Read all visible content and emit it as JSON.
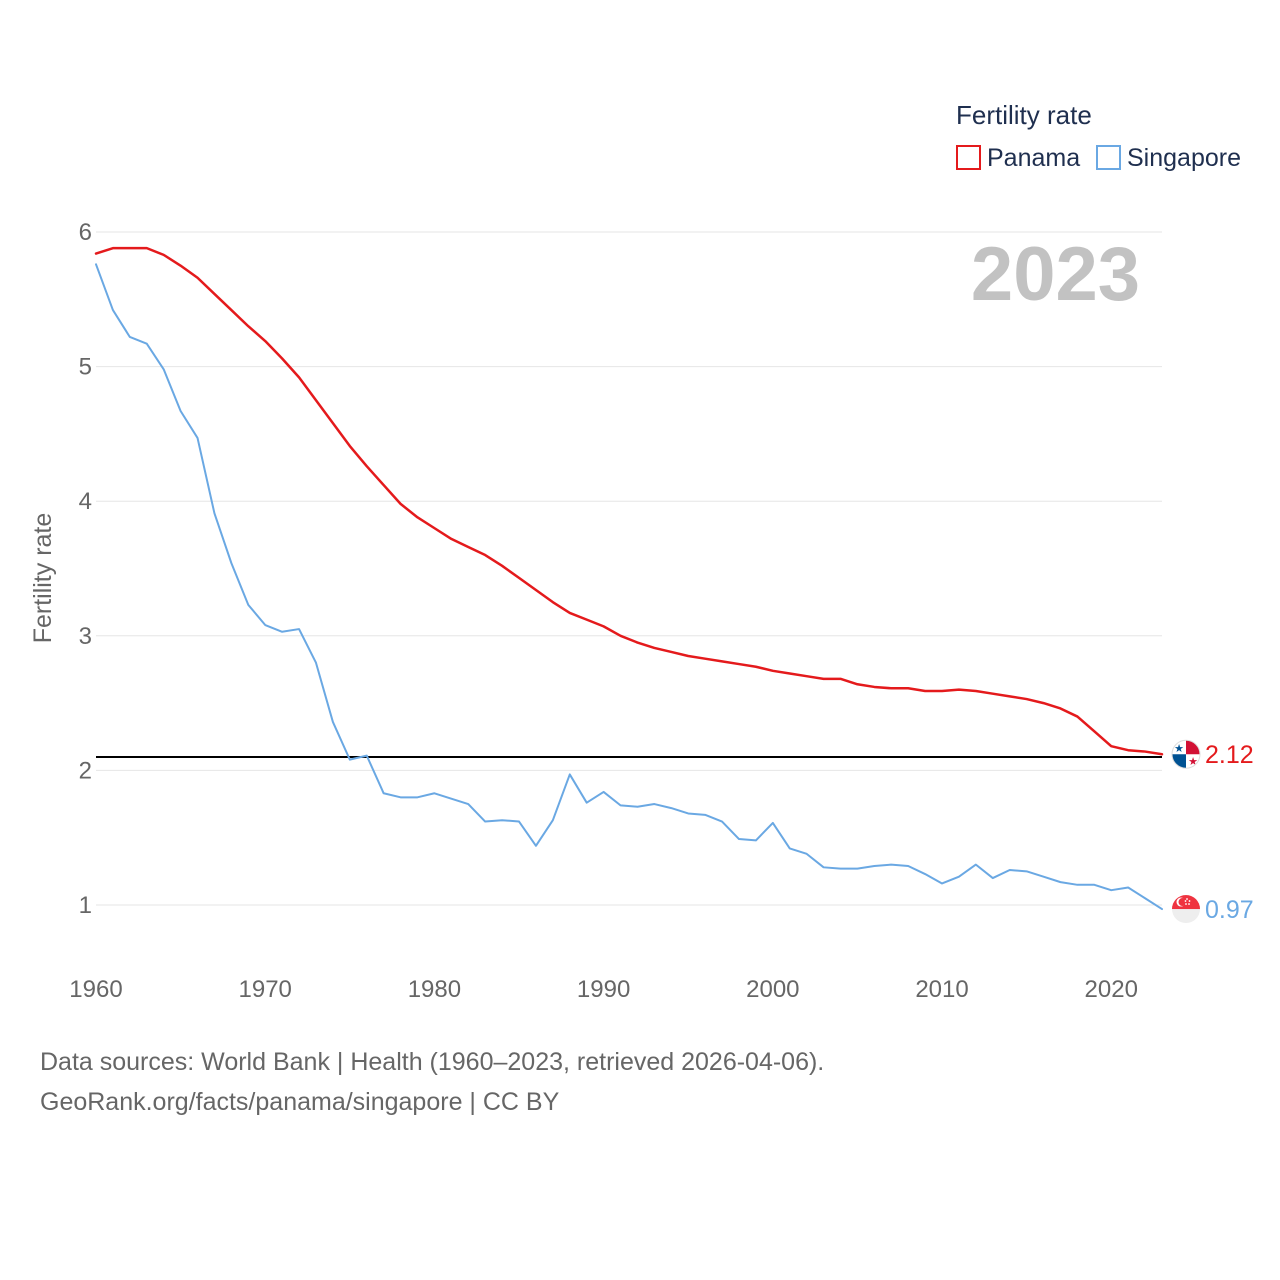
{
  "chart_data": {
    "type": "line",
    "year_label": "2023",
    "ylabel": "Fertility rate",
    "xlabel": "",
    "xlim": [
      1960,
      2023
    ],
    "ylim": [
      0.5,
      6.2
    ],
    "x_ticks": [
      1960,
      1970,
      1980,
      1990,
      2000,
      2010,
      2020
    ],
    "y_ticks": [
      1,
      2,
      3,
      4,
      5,
      6
    ],
    "grid": true,
    "reference_line": {
      "value": 2.1,
      "color": "#000000"
    },
    "legend": {
      "title": "Fertility rate",
      "placement": "top-right"
    },
    "series": [
      {
        "name": "Panama",
        "color": "#e41a1c",
        "end_label": "2.12",
        "start_year": 1960,
        "values": [
          5.84,
          5.88,
          5.88,
          5.88,
          5.83,
          5.75,
          5.66,
          5.54,
          5.42,
          5.3,
          5.19,
          5.06,
          4.92,
          4.75,
          4.58,
          4.41,
          4.26,
          4.12,
          3.98,
          3.88,
          3.8,
          3.72,
          3.66,
          3.6,
          3.52,
          3.43,
          3.34,
          3.25,
          3.17,
          3.12,
          3.07,
          3.0,
          2.95,
          2.91,
          2.88,
          2.85,
          2.83,
          2.81,
          2.79,
          2.77,
          2.74,
          2.72,
          2.7,
          2.68,
          2.68,
          2.64,
          2.62,
          2.61,
          2.61,
          2.59,
          2.59,
          2.6,
          2.59,
          2.57,
          2.55,
          2.53,
          2.5,
          2.46,
          2.4,
          2.29,
          2.18,
          2.15,
          2.14,
          2.12
        ]
      },
      {
        "name": "Singapore",
        "color": "#6aa8e3",
        "end_label": "0.97",
        "start_year": 1960,
        "values": [
          5.76,
          5.42,
          5.22,
          5.17,
          4.98,
          4.67,
          4.47,
          3.91,
          3.54,
          3.23,
          3.08,
          3.03,
          3.05,
          2.8,
          2.36,
          2.08,
          2.11,
          1.83,
          1.8,
          1.8,
          1.83,
          1.79,
          1.75,
          1.62,
          1.63,
          1.62,
          1.44,
          1.63,
          1.97,
          1.76,
          1.84,
          1.74,
          1.73,
          1.75,
          1.72,
          1.68,
          1.67,
          1.62,
          1.49,
          1.48,
          1.61,
          1.42,
          1.38,
          1.28,
          1.27,
          1.27,
          1.29,
          1.3,
          1.29,
          1.23,
          1.16,
          1.21,
          1.3,
          1.2,
          1.26,
          1.25,
          1.21,
          1.17,
          1.15,
          1.15,
          1.11,
          1.13,
          1.05,
          0.97
        ]
      }
    ]
  },
  "footer": {
    "sources": "Data sources: World Bank | Health (1960–2023, retrieved 2026-04-06).",
    "credit": "GeoRank.org/facts/panama/singapore | CC BY"
  }
}
